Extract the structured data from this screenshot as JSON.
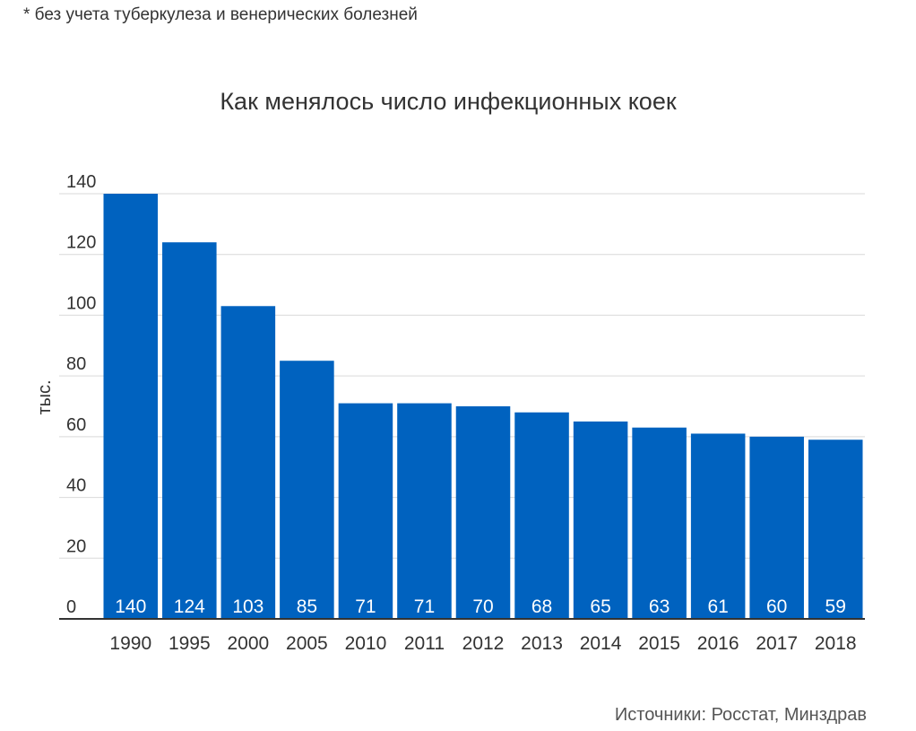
{
  "footnote": "* без учета туберкулеза и венерических болезней",
  "source": "Источники: Росстат, Минздрав",
  "colors": {
    "bar": "#0062bf",
    "grid": "#d9d9d9",
    "axis": "#333333",
    "label": "#ffffff",
    "text": "#333333"
  },
  "chart_data": {
    "type": "bar",
    "title": "Как менялось число инфекционных коек",
    "xlabel": "",
    "ylabel": "тыс.",
    "categories": [
      "1990",
      "1995",
      "2000",
      "2005",
      "2010",
      "2011",
      "2012",
      "2013",
      "2014",
      "2015",
      "2016",
      "2017",
      "2018"
    ],
    "values": [
      140,
      124,
      103,
      85,
      71,
      71,
      70,
      68,
      65,
      63,
      61,
      60,
      59
    ],
    "ylim": [
      0,
      140
    ],
    "yticks": [
      0,
      20,
      40,
      60,
      80,
      100,
      120,
      140
    ],
    "grid": true,
    "data_labels": "inside-bottom"
  }
}
